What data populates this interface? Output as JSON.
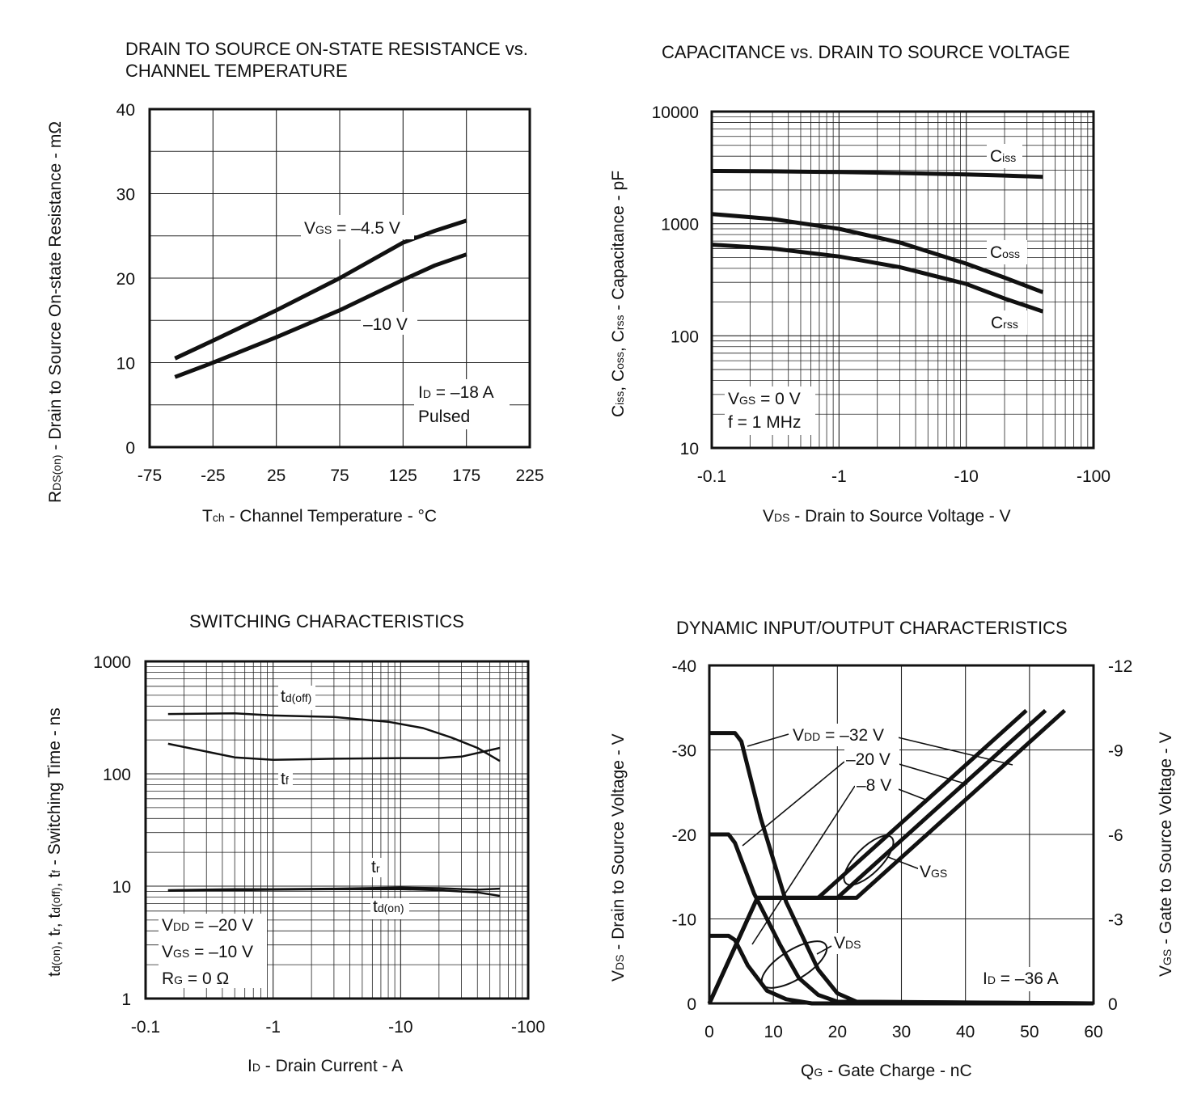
{
  "chart_data": [
    {
      "id": "rds",
      "type": "line",
      "title": [
        "DRAIN TO SOURCE ON-STATE RESISTANCE vs.",
        "CHANNEL TEMPERATURE"
      ],
      "xlabel": "Tch - Channel Temperature - °C",
      "ylabel": "RDS(on) - Drain to Source On-state Resistance - mΩ",
      "xlim": [
        -75,
        225
      ],
      "ylim": [
        0,
        40
      ],
      "xticks": [
        -75,
        -25,
        25,
        75,
        125,
        175,
        225
      ],
      "yticks": [
        0,
        10,
        20,
        30,
        40
      ],
      "xtick_labels": [
        "-75",
        "-25",
        "25",
        "75",
        "125",
        "175",
        "225"
      ],
      "ytick_labels": [
        "0",
        "10",
        "20",
        "30",
        "40"
      ],
      "series": [
        {
          "name": "VGS = –4.5 V",
          "x": [
            -55,
            -25,
            25,
            75,
            125,
            150,
            175
          ],
          "y": [
            10.5,
            12.6,
            16.2,
            20.0,
            24.2,
            25.6,
            26.8
          ]
        },
        {
          "name": "–10 V",
          "x": [
            -55,
            -25,
            25,
            75,
            125,
            150,
            175
          ],
          "y": [
            8.3,
            10.0,
            13.0,
            16.2,
            19.8,
            21.5,
            22.8
          ]
        }
      ],
      "annotations": [
        "ID = –18 A",
        "Pulsed"
      ]
    },
    {
      "id": "cap",
      "type": "line",
      "title": [
        "CAPACITANCE vs. DRAIN TO SOURCE VOLTAGE"
      ],
      "xlabel": "VDS - Drain to Source Voltage - V",
      "ylabel": "Ciss, Coss, Crss - Capacitance - pF",
      "xscale": "log",
      "yscale": "log",
      "xlim": [
        0.1,
        100
      ],
      "ylim": [
        10,
        10000
      ],
      "xtick_labels": [
        "-0.1",
        "-1",
        "-10",
        "-100"
      ],
      "ytick_labels": [
        "10",
        "100",
        "1000",
        "10000"
      ],
      "series": [
        {
          "name": "Ciss",
          "x": [
            0.1,
            0.3,
            1,
            3,
            10,
            20,
            40
          ],
          "y": [
            2950,
            2930,
            2890,
            2830,
            2750,
            2690,
            2620
          ]
        },
        {
          "name": "Coss",
          "x": [
            0.1,
            0.3,
            1,
            3,
            10,
            20,
            40
          ],
          "y": [
            1220,
            1100,
            900,
            680,
            440,
            330,
            245
          ]
        },
        {
          "name": "Crss",
          "x": [
            0.1,
            0.3,
            1,
            3,
            10,
            20,
            40
          ],
          "y": [
            650,
            600,
            510,
            410,
            290,
            215,
            165
          ]
        }
      ],
      "annotations": [
        "VGS = 0 V",
        "f = 1 MHz"
      ]
    },
    {
      "id": "sw",
      "type": "line",
      "title": [
        "SWITCHING CHARACTERISTICS"
      ],
      "xlabel": "ID - Drain Current - A",
      "ylabel": "td(on), tr, td(off), tf - Switching Time - ns",
      "xscale": "log",
      "yscale": "log",
      "xlim": [
        0.1,
        100
      ],
      "ylim": [
        1,
        1000
      ],
      "xtick_labels": [
        "-0.1",
        "-1",
        "-10",
        "-100"
      ],
      "ytick_labels": [
        "1",
        "10",
        "100",
        "1000"
      ],
      "series": [
        {
          "name": "td(off)",
          "x": [
            0.15,
            0.5,
            1,
            3,
            8,
            15,
            25,
            40,
            60
          ],
          "y": [
            340,
            345,
            330,
            320,
            290,
            255,
            210,
            170,
            130
          ]
        },
        {
          "name": "tf",
          "x": [
            0.15,
            0.5,
            1,
            3,
            10,
            20,
            30,
            60
          ],
          "y": [
            185,
            140,
            133,
            136,
            138,
            138,
            142,
            170
          ]
        },
        {
          "name": "tr",
          "x": [
            0.15,
            0.5,
            1,
            3,
            10,
            20,
            40,
            60
          ],
          "y": [
            9.2,
            9.4,
            9.4,
            9.5,
            9.7,
            9.6,
            9.3,
            9.5
          ]
        },
        {
          "name": "td(on)",
          "x": [
            0.15,
            0.5,
            1,
            3,
            10,
            20,
            40,
            60
          ],
          "y": [
            9.1,
            9.2,
            9.3,
            9.4,
            9.4,
            9.2,
            8.8,
            8.2
          ]
        }
      ],
      "annotations": [
        "VDD = –20 V",
        "VGS = –10 V",
        "RG = 0 Ω"
      ]
    },
    {
      "id": "dyn",
      "type": "line",
      "title": [
        "DYNAMIC INPUT/OUTPUT CHARACTERISTICS"
      ],
      "xlabel": "QG - Gate Charge - nC",
      "ylabel": "VDS - Drain to Source Voltage - V",
      "y2label": "VGS - Gate to Source Voltage - V",
      "xlim": [
        0,
        60
      ],
      "ylim": [
        0,
        -40
      ],
      "y2lim": [
        0,
        -12
      ],
      "xtick_labels": [
        "0",
        "10",
        "20",
        "30",
        "40",
        "50",
        "60"
      ],
      "ytick_labels": [
        "0",
        "-10",
        "-20",
        "-30",
        "-40"
      ],
      "y2tick_labels": [
        "0",
        "-3",
        "-6",
        "-9",
        "-12"
      ],
      "series": [
        {
          "name": "VDS (VDD = –32 V)",
          "x": [
            0,
            4,
            5,
            8,
            12,
            17,
            20,
            23,
            60
          ],
          "y": [
            -32,
            -32,
            -31,
            -22,
            -12,
            -4,
            -1.2,
            -0.2,
            0
          ]
        },
        {
          "name": "VDS (VDD = –20 V)",
          "x": [
            0,
            3,
            4,
            7,
            11,
            14,
            17,
            20,
            60
          ],
          "y": [
            -20,
            -20,
            -19,
            -13,
            -7,
            -3,
            -1,
            -0.2,
            0
          ]
        },
        {
          "name": "VDS (VDD = –8 V)",
          "x": [
            0,
            3,
            4,
            6,
            9,
            12,
            16,
            60
          ],
          "y": [
            -8,
            -8,
            -7.5,
            -4.5,
            -1.5,
            -0.5,
            0,
            0
          ]
        },
        {
          "name": "VGS (VDD = –8 V)",
          "x": [
            0,
            7.5,
            17,
            49.5
          ],
          "y": [
            0,
            -3.75,
            -3.75,
            -10.4
          ]
        },
        {
          "name": "VGS (VDD = –20 V)",
          "x": [
            0,
            7.5,
            20,
            52.5
          ],
          "y": [
            0,
            -3.75,
            -3.75,
            -10.4
          ]
        },
        {
          "name": "VGS (VDD = –32 V)",
          "x": [
            0,
            7.5,
            23,
            55.5
          ],
          "y": [
            0,
            -3.75,
            -3.75,
            -10.4
          ]
        }
      ],
      "annotations": [
        "VDD = –32 V",
        "–20 V",
        "–8 V",
        "VGS",
        "VDS",
        "ID = –36 A"
      ]
    }
  ],
  "labels": {
    "rds": {
      "title1": "DRAIN TO SOURCE ON-STATE RESISTANCE vs.",
      "title2": "CHANNEL TEMPERATURE",
      "x_main": "T",
      "x_sub": "ch",
      "x_rest": " - Channel Temperature - °C",
      "y_main": "R",
      "y_sub": "DS(on)",
      "y_rest": " - Drain to Source On-state Resistance - mΩ",
      "s1_a": "V",
      "s1_sub": "GS",
      "s1_b": " = –4.5 V",
      "s2": "–10 V",
      "n1_a": "I",
      "n1_sub": "D",
      "n1_b": " = –18 A",
      "n2": "Pulsed"
    },
    "cap": {
      "title": "CAPACITANCE vs. DRAIN TO SOURCE VOLTAGE",
      "x_main": "V",
      "x_sub": "DS",
      "x_rest": " - Drain to Source Voltage - V",
      "y_c1": "C",
      "y_s1": "iss",
      "y_c2": ", C",
      "y_s2": "oss",
      "y_c3": ", C",
      "y_s3": "rss",
      "y_rest": " - Capacitance - pF",
      "ciss_a": "C",
      "ciss_sub": "iss",
      "coss_a": "C",
      "coss_sub": "oss",
      "crss_a": "C",
      "crss_sub": "rss",
      "n1_a": "V",
      "n1_sub": "GS",
      "n1_b": " = 0 V",
      "n2": "f = 1 MHz"
    },
    "sw": {
      "title": "SWITCHING CHARACTERISTICS",
      "x_main": "I",
      "x_sub": "D",
      "x_rest": " - Drain Current - A",
      "y_t1": "t",
      "y_s1": "d(on)",
      "y_t2": ", t",
      "y_s2": "r",
      "y_t3": ", t",
      "y_s3": "d(off)",
      "y_t4": ", t",
      "y_s4": "f",
      "y_rest": " - Switching Time - ns",
      "tdoff_a": "t",
      "tdoff_sub": "d(off)",
      "tf_a": "t",
      "tf_sub": "f",
      "tr_a": "t",
      "tr_sub": "r",
      "tdon_a": "t",
      "tdon_sub": "d(on)",
      "n1_a": "V",
      "n1_sub": "DD",
      "n1_b": " = –20 V",
      "n2_a": "V",
      "n2_sub": "GS",
      "n2_b": " = –10 V",
      "n3_a": "R",
      "n3_sub": "G",
      "n3_b": " = 0 Ω"
    },
    "dyn": {
      "title": "DYNAMIC INPUT/OUTPUT CHARACTERISTICS",
      "x_main": "Q",
      "x_sub": "G",
      "x_rest": " - Gate Charge - nC",
      "y_main": "V",
      "y_sub": "DS",
      "y_rest": " - Drain to Source Voltage - V",
      "y2_main": "V",
      "y2_sub": "GS",
      "y2_rest": " - Gate to Source Voltage - V",
      "vdd_a": "V",
      "vdd_sub": "DD",
      "vdd_b": " = –32 V",
      "v20": "–20 V",
      "v8": "–8 V",
      "vgs_a": "V",
      "vgs_sub": "GS",
      "vds_a": "V",
      "vds_sub": "DS",
      "id_a": "I",
      "id_sub": "D",
      "id_b": " = –36 A"
    }
  }
}
